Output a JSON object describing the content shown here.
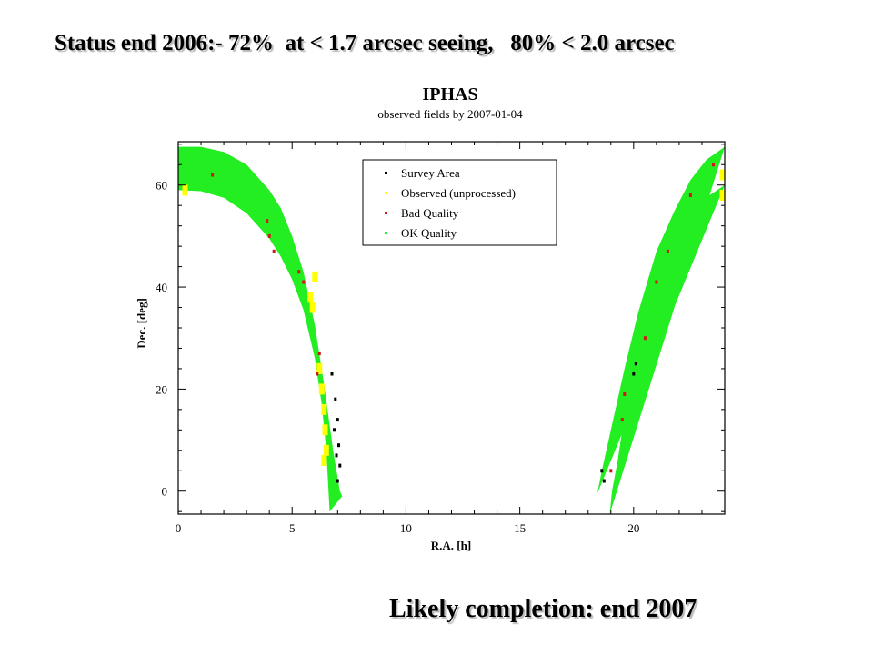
{
  "slide": {
    "status_text": "Status end 2006:- 72%  at < 1.7 arcsec seeing,   80% < 2.0 arcsec",
    "completion_text": "Likely completion: end 2007"
  },
  "chart_data": {
    "type": "scatter",
    "title": "IPHAS",
    "subtitle": "observed fields by 2007-01-04",
    "xlabel": "R.A. [h]",
    "ylabel": "Dec. [deg]",
    "xlim": [
      0,
      24
    ],
    "ylim": [
      -4.5,
      68.5
    ],
    "xticks": [
      0,
      5,
      10,
      15,
      20
    ],
    "yticks": [
      0,
      20,
      40,
      60
    ],
    "grid": false,
    "legend_position": "top-center",
    "series": [
      {
        "name": "Survey Area",
        "color": "#000000",
        "points": [
          [
            6.75,
            23
          ],
          [
            6.9,
            18
          ],
          [
            7.0,
            14
          ],
          [
            7.05,
            9
          ],
          [
            7.1,
            5
          ],
          [
            7.0,
            2
          ],
          [
            6.85,
            12
          ],
          [
            6.95,
            7
          ],
          [
            18.6,
            4
          ],
          [
            18.7,
            2
          ],
          [
            20.1,
            25
          ],
          [
            20.0,
            23
          ]
        ]
      },
      {
        "name": "Observed (unprocessed)",
        "color": "#ffff00",
        "points": [
          [
            5.8,
            38
          ],
          [
            5.9,
            36
          ],
          [
            6.0,
            42
          ],
          [
            6.3,
            20
          ],
          [
            6.4,
            16
          ],
          [
            6.45,
            12
          ],
          [
            6.5,
            8
          ],
          [
            6.4,
            6
          ],
          [
            0.3,
            59
          ],
          [
            23.9,
            58
          ],
          [
            23.9,
            62
          ],
          [
            6.2,
            24
          ]
        ]
      },
      {
        "name": "Bad Quality",
        "color": "#d01818",
        "points": [
          [
            3.9,
            53
          ],
          [
            4.0,
            50
          ],
          [
            4.2,
            47
          ],
          [
            5.3,
            43
          ],
          [
            5.5,
            41
          ],
          [
            6.2,
            27
          ],
          [
            6.1,
            23
          ],
          [
            19.5,
            14
          ],
          [
            19.6,
            19
          ],
          [
            21.0,
            41
          ],
          [
            21.5,
            47
          ],
          [
            22.5,
            58
          ],
          [
            23.5,
            64
          ],
          [
            1.5,
            62
          ],
          [
            20.5,
            30
          ],
          [
            19.0,
            4
          ]
        ]
      },
      {
        "name": "OK Quality",
        "color": "#22ee22",
        "points": [
          [
            0.5,
            62
          ],
          [
            2,
            60
          ],
          [
            4,
            52
          ],
          [
            5.5,
            38
          ],
          [
            6.3,
            20
          ],
          [
            6.6,
            5
          ],
          [
            19,
            6
          ],
          [
            19.8,
            20
          ],
          [
            21,
            38
          ],
          [
            22.5,
            55
          ],
          [
            23.8,
            64
          ]
        ]
      }
    ],
    "survey_band": {
      "inner_edge": [
        [
          0,
          59
        ],
        [
          1.0,
          58.8
        ],
        [
          2.0,
          57.5
        ],
        [
          3.0,
          54.5
        ],
        [
          4.0,
          49.5
        ],
        [
          4.5,
          46
        ],
        [
          5.0,
          41.5
        ],
        [
          5.5,
          35.5
        ],
        [
          6.0,
          26
        ],
        [
          6.3,
          17
        ],
        [
          6.5,
          8
        ],
        [
          6.6,
          0
        ],
        [
          6.65,
          -4
        ]
      ],
      "outer_edge": [
        [
          0,
          67.5
        ],
        [
          1.0,
          67.5
        ],
        [
          2.0,
          66.5
        ],
        [
          3.0,
          64
        ],
        [
          4.0,
          59
        ],
        [
          4.5,
          55.5
        ],
        [
          5.0,
          50
        ],
        [
          5.5,
          43
        ],
        [
          6.0,
          32.5
        ],
        [
          6.4,
          21
        ],
        [
          6.8,
          8
        ],
        [
          7.1,
          0
        ],
        [
          7.2,
          -1
        ]
      ],
      "right_inner_edge": [
        [
          24,
          60
        ],
        [
          23.0,
          57
        ],
        [
          22.0,
          51.5
        ],
        [
          21.0,
          42
        ],
        [
          20.5,
          35
        ],
        [
          20.0,
          25
        ],
        [
          19.6,
          15
        ],
        [
          19.3,
          6
        ],
        [
          19.05,
          0
        ],
        [
          18.95,
          -4.5
        ]
      ],
      "right_outer_edge": [
        [
          18.4,
          -0.5
        ],
        [
          18.6,
          4
        ],
        [
          18.8,
          8
        ],
        [
          19.2,
          16
        ],
        [
          19.6,
          24
        ],
        [
          20.2,
          35
        ],
        [
          21.0,
          47
        ],
        [
          21.8,
          55
        ],
        [
          22.5,
          61
        ],
        [
          23.2,
          65
        ],
        [
          24,
          67.5
        ]
      ]
    }
  }
}
